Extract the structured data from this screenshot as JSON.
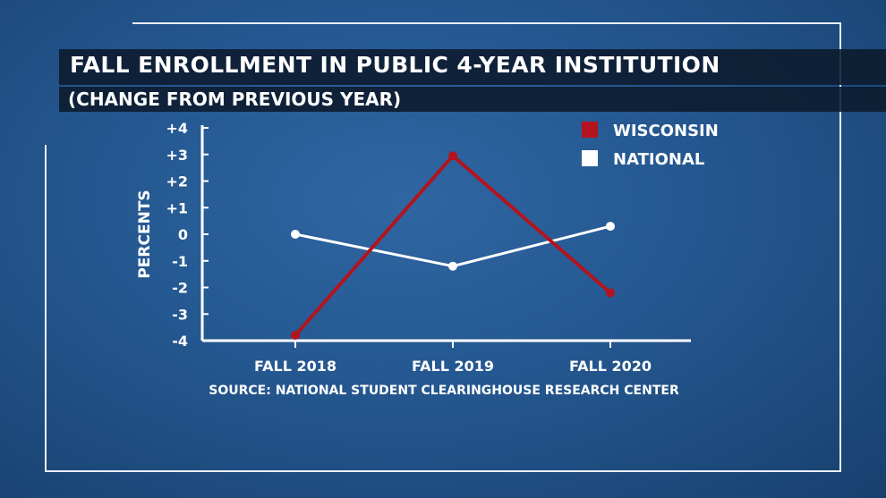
{
  "chart_data": {
    "type": "line",
    "title": "FALL ENROLLMENT IN PUBLIC 4-YEAR INSTITUTION",
    "subtitle": "(CHANGE FROM PREVIOUS YEAR)",
    "ylabel": "PERCENTS",
    "xlabel": "",
    "categories": [
      "FALL 2018",
      "FALL 2019",
      "FALL 2020"
    ],
    "yticks": [
      "+4",
      "+3",
      "+2",
      "+1",
      "0",
      "-1",
      "-2",
      "-3",
      "-4"
    ],
    "ylim": [
      -4,
      4
    ],
    "series": [
      {
        "name": "WISCONSIN",
        "values": [
          -3.8,
          2.95,
          -2.2
        ],
        "color": "#b3141e"
      },
      {
        "name": "NATIONAL",
        "values": [
          0.0,
          -1.2,
          0.3
        ],
        "color": "#ffffff"
      }
    ],
    "legend_position": "top-right",
    "source": "SOURCE: NATIONAL STUDENT CLEARINGHOUSE RESEARCH CENTER",
    "grid": false
  }
}
